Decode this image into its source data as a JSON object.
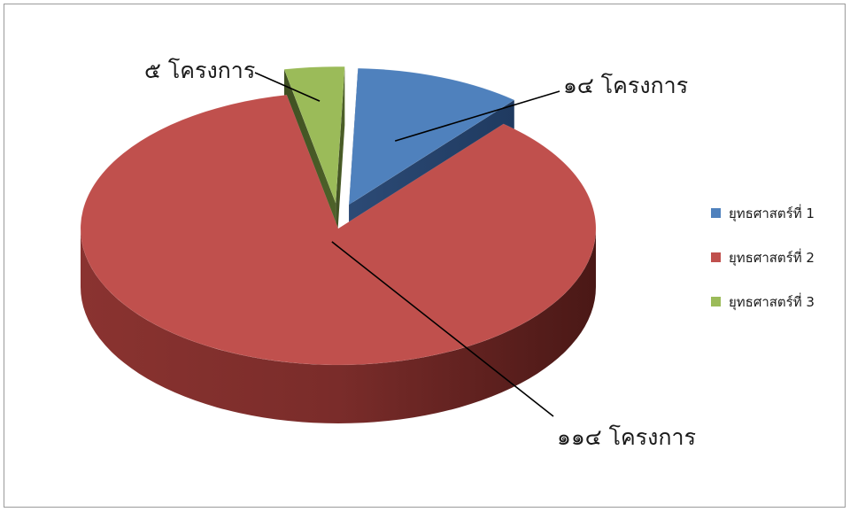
{
  "chart_data": {
    "type": "pie",
    "style": "3d-exploded",
    "title": "",
    "legend": "right",
    "slices": [
      {
        "name": "ยุทธศาสตร์ที่ 1",
        "value": 14,
        "label": "๑๔ โครงการ",
        "color": "#4f81bd"
      },
      {
        "name": "ยุทธศาสตร์ที่ 2",
        "value": 114,
        "label": "๑๑๔ โครงการ",
        "color": "#c0504d"
      },
      {
        "name": "ยุทธศาสตร์ที่ 3",
        "value": 5,
        "label": "๕ โครงการ",
        "color": "#9bbb59"
      }
    ]
  }
}
